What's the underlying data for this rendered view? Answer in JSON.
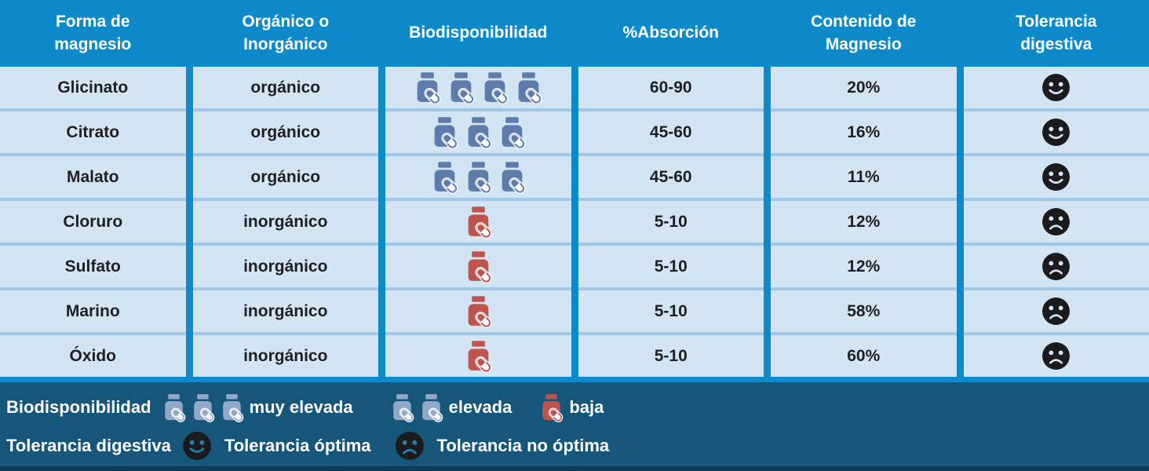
{
  "table": {
    "columns": [
      "Forma de\nmagnesio",
      "Orgánico o\nInorgánico",
      "Biodisponibilidad",
      "%Absorción",
      "Contenido de\nMagnesio",
      "Tolerancia\ndigestiva"
    ],
    "rows": [
      {
        "form": "Glicinato",
        "type": "orgánico",
        "bio_count": 4,
        "bio_color": "blue",
        "absorption": "60-90",
        "content": "20%",
        "tolerance": "happy"
      },
      {
        "form": "Citrato",
        "type": "orgánico",
        "bio_count": 3,
        "bio_color": "blue",
        "absorption": "45-60",
        "content": "16%",
        "tolerance": "happy"
      },
      {
        "form": "Malato",
        "type": "orgánico",
        "bio_count": 3,
        "bio_color": "blue",
        "absorption": "45-60",
        "content": "11%",
        "tolerance": "happy"
      },
      {
        "form": "Cloruro",
        "type": "inorgánico",
        "bio_count": 1,
        "bio_color": "red",
        "absorption": "5-10",
        "content": "12%",
        "tolerance": "sad"
      },
      {
        "form": "Sulfato",
        "type": "inorgánico",
        "bio_count": 1,
        "bio_color": "red",
        "absorption": "5-10",
        "content": "12%",
        "tolerance": "sad"
      },
      {
        "form": "Marino",
        "type": "inorgánico",
        "bio_count": 1,
        "bio_color": "red",
        "absorption": "5-10",
        "content": "58%",
        "tolerance": "sad"
      },
      {
        "form": "Óxido",
        "type": "inorgánico",
        "bio_count": 1,
        "bio_color": "red",
        "absorption": "5-10",
        "content": "60%",
        "tolerance": "sad"
      }
    ]
  },
  "legend": {
    "bio_label": "Biodisponibilidad",
    "bio_items": [
      {
        "count": 3,
        "color": "legend_blue",
        "label": "muy elevada"
      },
      {
        "count": 2,
        "color": "legend_blue",
        "label": "elevada"
      },
      {
        "count": 1,
        "color": "red",
        "label": "baja"
      }
    ],
    "tol_label": "Tolerancia digestiva",
    "tol_items": [
      {
        "face": "happy",
        "label": "Tolerancia óptima"
      },
      {
        "face": "sad",
        "label": "Tolerancia no óptima"
      }
    ]
  },
  "icons": {
    "bottle": "pill-bottle-icon",
    "happy": "happy-face-icon",
    "sad": "sad-face-icon"
  },
  "colors": {
    "header_blue": "#0e8aca",
    "row_bg": "#d3e5f3",
    "row_line": "#9fc8e9",
    "text_dark": "#1f1f23",
    "bottle_blue": "#5d7cab",
    "bottle_red": "#bf544f",
    "legend_bottle_blue": "#92a8c9",
    "footer_bg": "#16567b",
    "footer_strip": "#0e3d5a",
    "face_dark": "#1b1b1d",
    "face_feature_body": "#d3e5f3",
    "face_feature_footer": "#2581ab"
  }
}
